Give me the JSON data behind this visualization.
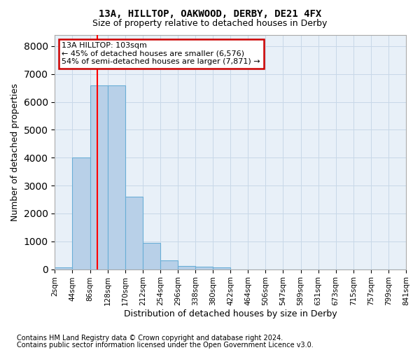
{
  "title1": "13A, HILLTOP, OAKWOOD, DERBY, DE21 4FX",
  "title2": "Size of property relative to detached houses in Derby",
  "xlabel": "Distribution of detached houses by size in Derby",
  "ylabel": "Number of detached properties",
  "bar_left_edges": [
    2,
    44,
    86,
    128,
    170,
    212,
    254,
    296,
    338,
    380,
    422,
    464,
    506,
    547,
    589,
    631,
    673,
    715,
    757,
    799
  ],
  "bar_heights": [
    60,
    4000,
    6580,
    6580,
    2600,
    950,
    310,
    120,
    80,
    60,
    0,
    0,
    0,
    0,
    0,
    0,
    0,
    0,
    0,
    0
  ],
  "bin_width": 42,
  "bar_color": "#b8d0e8",
  "bar_edge_color": "#6aaed6",
  "red_line_x": 103,
  "annotation_text": "13A HILLTOP: 103sqm\n← 45% of detached houses are smaller (6,576)\n54% of semi-detached houses are larger (7,871) →",
  "annotation_box_color": "#ffffff",
  "annotation_box_edge_color": "#cc0000",
  "ylim": [
    0,
    8400
  ],
  "yticks": [
    0,
    1000,
    2000,
    3000,
    4000,
    5000,
    6000,
    7000,
    8000
  ],
  "xtick_labels": [
    "2sqm",
    "44sqm",
    "86sqm",
    "128sqm",
    "170sqm",
    "212sqm",
    "254sqm",
    "296sqm",
    "338sqm",
    "380sqm",
    "422sqm",
    "464sqm",
    "506sqm",
    "547sqm",
    "589sqm",
    "631sqm",
    "673sqm",
    "715sqm",
    "757sqm",
    "799sqm",
    "841sqm"
  ],
  "footnote1": "Contains HM Land Registry data © Crown copyright and database right 2024.",
  "footnote2": "Contains public sector information licensed under the Open Government Licence v3.0.",
  "grid_color": "#c8d8e8",
  "background_color": "#e8f0f8",
  "title1_fontsize": 10,
  "title2_fontsize": 9,
  "ylabel_fontsize": 9,
  "xlabel_fontsize": 9,
  "annotation_fontsize": 8,
  "tick_fontsize": 7.5,
  "footnote_fontsize": 7
}
